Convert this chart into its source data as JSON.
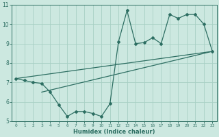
{
  "xlabel": "Humidex (Indice chaleur)",
  "bg_color": "#cce8e0",
  "line_color": "#2d6e62",
  "grid_color": "#a8cfc4",
  "xlim": [
    -0.5,
    23.5
  ],
  "ylim": [
    5,
    11
  ],
  "xticks": [
    0,
    1,
    2,
    3,
    4,
    5,
    6,
    7,
    8,
    9,
    10,
    11,
    12,
    13,
    14,
    15,
    16,
    17,
    18,
    19,
    20,
    21,
    22,
    23
  ],
  "yticks": [
    5,
    6,
    7,
    8,
    9,
    10,
    11
  ],
  "curve_x": [
    0,
    1,
    2,
    3,
    4,
    5,
    6,
    7,
    8,
    9,
    10,
    11,
    12,
    13,
    14,
    15,
    16,
    17,
    18,
    19,
    20,
    21,
    22,
    23
  ],
  "curve_y": [
    7.2,
    7.1,
    7.0,
    6.95,
    6.5,
    5.85,
    5.25,
    5.5,
    5.5,
    5.4,
    5.25,
    5.9,
    9.1,
    10.7,
    9.0,
    9.05,
    9.3,
    9.0,
    10.5,
    10.3,
    10.5,
    10.5,
    10.0,
    8.6
  ],
  "line1_x": [
    0,
    23
  ],
  "line1_y": [
    7.2,
    8.6
  ],
  "line2_x": [
    3,
    23
  ],
  "line2_y": [
    6.5,
    8.6
  ]
}
